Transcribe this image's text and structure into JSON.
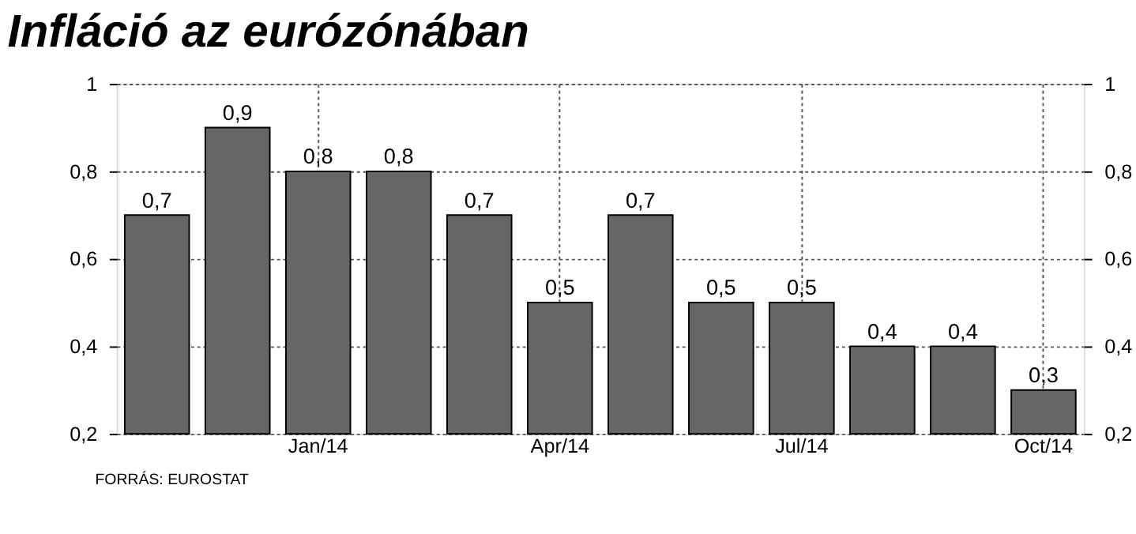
{
  "chart_data": {
    "type": "bar",
    "title": "Infláció az eurózónában",
    "categories": [
      null,
      null,
      "Jan/14",
      null,
      null,
      "Apr/14",
      null,
      null,
      "Jul/14",
      null,
      null,
      "Oct/14"
    ],
    "values": [
      0.7,
      0.9,
      0.8,
      0.8,
      0.7,
      0.5,
      0.7,
      0.5,
      0.5,
      0.4,
      0.4,
      0.3
    ],
    "value_labels": [
      "0,7",
      "0,9",
      "0,8",
      "0,8",
      "0,7",
      "0,5",
      "0,7",
      "0,5",
      "0,5",
      "0,4",
      "0,4",
      "0,3"
    ],
    "color": "#666666",
    "ylim": [
      0.2,
      1
    ],
    "yticks": [
      {
        "value": 0.2,
        "label": "0,2"
      },
      {
        "value": 0.4,
        "label": "0,4"
      },
      {
        "value": 0.6,
        "label": "0,6"
      },
      {
        "value": 0.8,
        "label": "0,8"
      },
      {
        "value": 1,
        "label": "1"
      }
    ],
    "y2lim": [
      0.2,
      1
    ],
    "y2ticks": [
      {
        "value": 0.2,
        "label": "0,2"
      },
      {
        "value": 0.4,
        "label": "0,4"
      },
      {
        "value": 0.6,
        "label": "0,6"
      },
      {
        "value": 0.8,
        "label": "0,8"
      },
      {
        "value": 1,
        "label": "1"
      }
    ],
    "grid": true,
    "annotations": [
      "FORRÁS: EUROSTAT"
    ]
  }
}
